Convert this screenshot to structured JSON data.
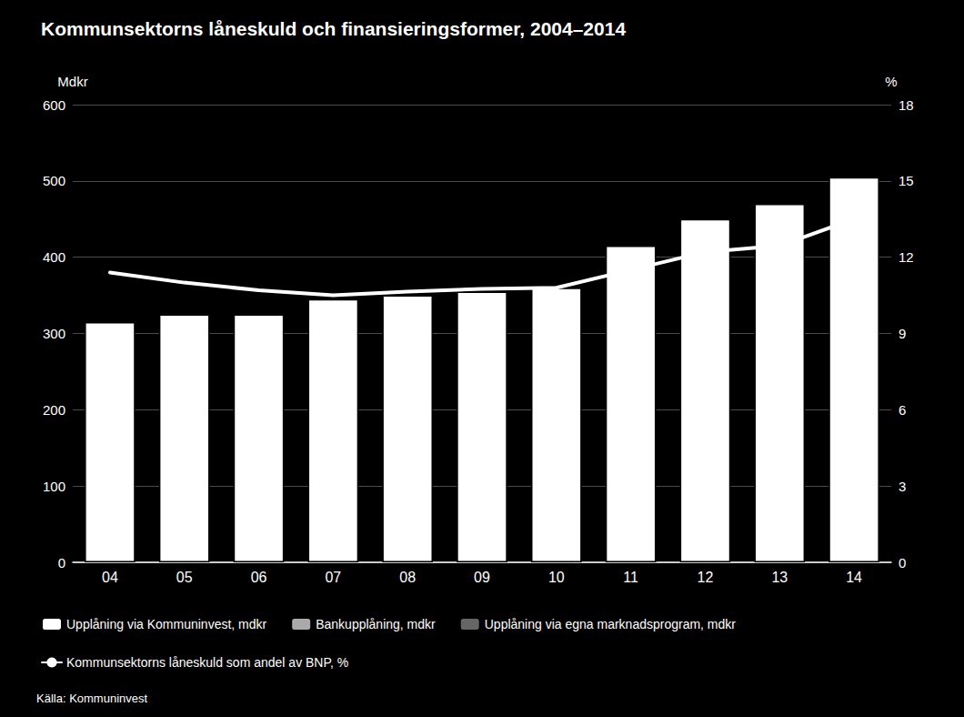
{
  "chart_data": {
    "type": "bar",
    "title": "Kommunsektorns låneskuld och finansieringsformer, 2004–2014",
    "ylabel": "Mdkr",
    "y2label": "%",
    "annotations": [
      "Källa: Kommuninvest"
    ],
    "categories": [
      "04",
      "05",
      "06",
      "07",
      "08",
      "09",
      "10",
      "11",
      "12",
      "13",
      "14"
    ],
    "series": [
      {
        "name": "Upplåning via Kommuninvest, mdkr",
        "type": "bar",
        "color": "#ffffff",
        "values": [
          315,
          325,
          325,
          345,
          350,
          355,
          360,
          415,
          450,
          470,
          505
        ]
      },
      {
        "name": "Bankupplåning, mdkr",
        "type": "bar",
        "color": "#aaaaaa",
        "values": [
          null,
          null,
          null,
          null,
          null,
          null,
          null,
          null,
          null,
          null,
          null
        ]
      },
      {
        "name": "Upplåning via egna marknadsprogram, mdkr",
        "type": "bar",
        "color": "#666666",
        "values": [
          null,
          null,
          null,
          null,
          null,
          null,
          null,
          null,
          null,
          null,
          null
        ]
      },
      {
        "name": "Kommunsektorns låneskuld som andel av BNP, %",
        "type": "line",
        "color": "#ffffff",
        "axis": "y2",
        "values": [
          11.4,
          11.0,
          10.7,
          10.5,
          10.65,
          10.75,
          10.8,
          11.5,
          12.2,
          12.45,
          13.5
        ]
      }
    ],
    "ylim": [
      0,
      600
    ],
    "yticks": [
      0,
      100,
      200,
      300,
      400,
      500,
      600
    ],
    "y2lim": [
      0,
      18
    ],
    "y2ticks": [
      0,
      3,
      6,
      9,
      12,
      15,
      18
    ],
    "grid": true,
    "legend": "lower left"
  }
}
